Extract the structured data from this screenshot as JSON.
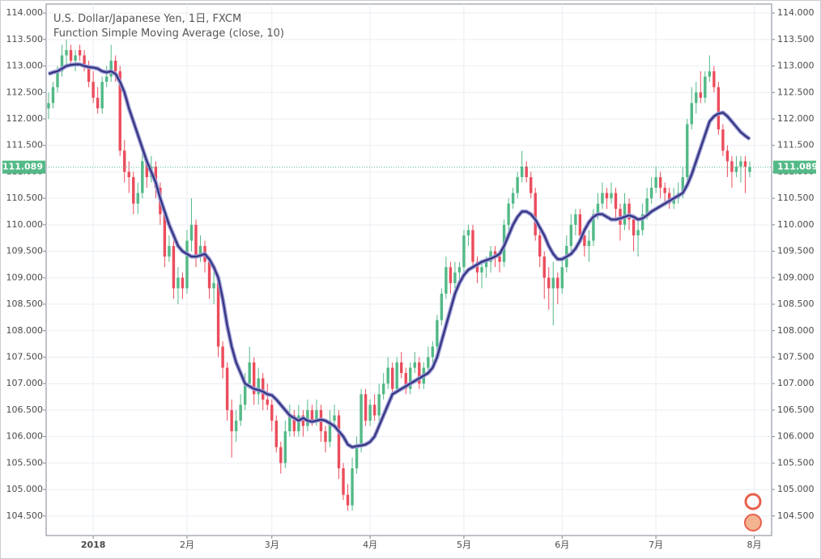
{
  "chart_data": {
    "type": "candlestick",
    "title": "U.S. Dollar/Japanese Yen, 1日, FXCM",
    "up_color": "#53b987",
    "down_color": "#eb4d5c",
    "grid": true,
    "ylim": [
      104.13,
      114.17
    ],
    "yticks": [
      {
        "value": 104.5,
        "label": "104.500"
      },
      {
        "value": 105,
        "label": "105.000"
      },
      {
        "value": 105.5,
        "label": "105.500"
      },
      {
        "value": 106,
        "label": "106.000"
      },
      {
        "value": 106.5,
        "label": "106.500"
      },
      {
        "value": 107,
        "label": "107.000"
      },
      {
        "value": 107.5,
        "label": "107.500"
      },
      {
        "value": 108,
        "label": "108.000"
      },
      {
        "value": 108.5,
        "label": "108.500"
      },
      {
        "value": 109,
        "label": "109.000"
      },
      {
        "value": 109.5,
        "label": "109.500"
      },
      {
        "value": 110,
        "label": "110.000"
      },
      {
        "value": 110.5,
        "label": "110.500"
      },
      {
        "value": 111,
        "label": "111.000"
      },
      {
        "value": 111.5,
        "label": "111.500"
      },
      {
        "value": 112,
        "label": "112.000"
      },
      {
        "value": 112.5,
        "label": "112.500"
      },
      {
        "value": 113,
        "label": "113.000"
      },
      {
        "value": 113.5,
        "label": "113.500"
      },
      {
        "value": 114,
        "label": "114.000"
      }
    ],
    "xlim": [
      -0.54,
      161.9
    ],
    "xticks": [
      {
        "value": 10,
        "label": "2018"
      },
      {
        "value": 31,
        "label": "2月"
      },
      {
        "value": 50,
        "label": "3月"
      },
      {
        "value": 72,
        "label": "4月"
      },
      {
        "value": 93,
        "label": "5月"
      },
      {
        "value": 115,
        "label": "6月"
      },
      {
        "value": 136,
        "label": "7月"
      },
      {
        "value": 158,
        "label": "8月"
      }
    ],
    "last_price": 111.089,
    "last_price_color": "#53b987",
    "candles": [
      [
        112.2,
        112.5,
        112.0,
        112.3
      ],
      [
        112.3,
        112.7,
        112.2,
        112.6
      ],
      [
        112.6,
        113.0,
        112.5,
        112.9
      ],
      [
        112.9,
        113.4,
        112.8,
        113.2
      ],
      [
        113.2,
        113.5,
        113.0,
        113.3
      ],
      [
        113.3,
        113.4,
        113.0,
        113.1
      ],
      [
        113.1,
        113.3,
        112.9,
        113.2
      ],
      [
        113.3,
        113.4,
        113.1,
        113.2
      ],
      [
        113.2,
        113.3,
        112.9,
        113.0
      ],
      [
        113.0,
        113.1,
        112.6,
        112.7
      ],
      [
        112.7,
        112.9,
        112.3,
        112.4
      ],
      [
        112.4,
        112.6,
        112.1,
        112.2
      ],
      [
        112.2,
        112.8,
        112.1,
        112.7
      ],
      [
        112.7,
        113.0,
        112.6,
        112.8
      ],
      [
        112.8,
        113.4,
        112.7,
        113.1
      ],
      [
        113.1,
        113.2,
        112.7,
        112.9
      ],
      [
        112.9,
        113.0,
        111.3,
        111.4
      ],
      [
        111.4,
        111.6,
        110.8,
        111.0
      ],
      [
        111.0,
        111.2,
        110.6,
        110.9
      ],
      [
        110.9,
        111.0,
        110.2,
        110.4
      ],
      [
        110.4,
        110.8,
        110.2,
        110.6
      ],
      [
        110.6,
        111.4,
        110.5,
        111.2
      ],
      [
        111.2,
        111.3,
        110.7,
        110.9
      ],
      [
        110.9,
        111.3,
        110.8,
        111.1
      ],
      [
        111.1,
        111.2,
        110.5,
        110.7
      ],
      [
        110.7,
        110.8,
        110.0,
        110.2
      ],
      [
        110.2,
        110.3,
        109.2,
        109.4
      ],
      [
        109.4,
        109.8,
        109.3,
        109.6
      ],
      [
        109.6,
        109.7,
        108.6,
        108.8
      ],
      [
        108.8,
        109.2,
        108.5,
        109.0
      ],
      [
        109.0,
        109.1,
        108.6,
        108.8
      ],
      [
        108.8,
        109.9,
        108.7,
        109.7
      ],
      [
        109.7,
        110.5,
        109.5,
        110.0
      ],
      [
        110.0,
        110.1,
        109.2,
        109.4
      ],
      [
        109.4,
        109.8,
        109.3,
        109.6
      ],
      [
        109.6,
        109.7,
        109.1,
        109.3
      ],
      [
        109.3,
        109.4,
        108.6,
        108.8
      ],
      [
        108.8,
        109.1,
        108.5,
        108.9
      ],
      [
        108.9,
        109.0,
        107.5,
        107.7
      ],
      [
        107.7,
        107.8,
        107.1,
        107.3
      ],
      [
        107.3,
        107.4,
        106.3,
        106.5
      ],
      [
        106.5,
        106.7,
        105.6,
        106.1
      ],
      [
        106.1,
        106.5,
        105.9,
        106.3
      ],
      [
        106.3,
        106.8,
        106.2,
        106.6
      ],
      [
        106.6,
        107.2,
        106.5,
        107.0
      ],
      [
        107.0,
        107.7,
        106.9,
        107.4
      ],
      [
        107.4,
        107.5,
        106.6,
        106.8
      ],
      [
        106.8,
        107.3,
        106.6,
        107.1
      ],
      [
        107.1,
        107.2,
        106.5,
        106.7
      ],
      [
        106.7,
        107.0,
        106.5,
        106.6
      ],
      [
        106.6,
        106.7,
        106.1,
        106.3
      ],
      [
        106.3,
        106.4,
        105.7,
        105.8
      ],
      [
        105.8,
        105.9,
        105.3,
        105.5
      ],
      [
        105.5,
        106.3,
        105.4,
        106.1
      ],
      [
        106.1,
        106.6,
        106.0,
        106.4
      ],
      [
        106.4,
        106.5,
        106.0,
        106.1
      ],
      [
        106.1,
        106.6,
        106.0,
        106.4
      ],
      [
        106.4,
        106.5,
        106.0,
        106.2
      ],
      [
        106.2,
        106.7,
        106.1,
        106.5
      ],
      [
        106.5,
        106.6,
        106.2,
        106.3
      ],
      [
        106.3,
        106.7,
        106.2,
        106.5
      ],
      [
        106.5,
        106.6,
        105.9,
        106.1
      ],
      [
        106.1,
        106.2,
        105.7,
        105.9
      ],
      [
        105.9,
        106.5,
        105.8,
        106.3
      ],
      [
        106.3,
        106.6,
        106.2,
        106.4
      ],
      [
        106.4,
        106.5,
        105.2,
        105.4
      ],
      [
        105.4,
        105.5,
        104.8,
        104.9
      ],
      [
        104.9,
        105.1,
        104.6,
        104.7
      ],
      [
        104.7,
        105.6,
        104.6,
        105.4
      ],
      [
        105.4,
        106.0,
        105.3,
        105.8
      ],
      [
        105.8,
        106.9,
        105.7,
        106.8
      ],
      [
        106.8,
        106.9,
        106.2,
        106.3
      ],
      [
        106.3,
        106.7,
        106.2,
        106.6
      ],
      [
        106.6,
        106.8,
        106.3,
        106.4
      ],
      [
        106.4,
        107.0,
        106.3,
        106.8
      ],
      [
        106.8,
        107.2,
        106.7,
        107.0
      ],
      [
        107.0,
        107.5,
        106.9,
        107.3
      ],
      [
        107.3,
        107.4,
        106.7,
        106.9
      ],
      [
        106.9,
        107.5,
        106.8,
        107.4
      ],
      [
        107.4,
        107.6,
        107.1,
        107.2
      ],
      [
        107.2,
        107.3,
        106.8,
        106.9
      ],
      [
        106.9,
        107.4,
        106.8,
        107.3
      ],
      [
        107.3,
        107.6,
        107.2,
        107.4
      ],
      [
        107.4,
        107.5,
        106.9,
        107.0
      ],
      [
        107.0,
        107.4,
        106.9,
        107.3
      ],
      [
        107.3,
        107.7,
        107.2,
        107.5
      ],
      [
        107.5,
        107.8,
        107.4,
        107.7
      ],
      [
        107.7,
        108.3,
        107.6,
        108.2
      ],
      [
        108.2,
        108.8,
        108.1,
        108.7
      ],
      [
        108.7,
        109.4,
        108.6,
        109.2
      ],
      [
        109.2,
        109.3,
        108.7,
        108.9
      ],
      [
        108.9,
        109.3,
        108.8,
        109.1
      ],
      [
        109.1,
        109.3,
        108.9,
        109.2
      ],
      [
        109.2,
        109.9,
        109.1,
        109.8
      ],
      [
        109.8,
        110.0,
        109.6,
        109.9
      ],
      [
        109.9,
        110.0,
        109.2,
        109.3
      ],
      [
        109.3,
        109.4,
        108.9,
        109.1
      ],
      [
        109.1,
        109.3,
        108.8,
        109.2
      ],
      [
        109.2,
        109.4,
        109.0,
        109.3
      ],
      [
        109.3,
        109.6,
        109.1,
        109.5
      ],
      [
        109.5,
        109.6,
        109.2,
        109.4
      ],
      [
        109.4,
        109.5,
        109.1,
        109.3
      ],
      [
        109.3,
        110.1,
        109.2,
        110.0
      ],
      [
        110.0,
        110.5,
        109.9,
        110.4
      ],
      [
        110.4,
        110.7,
        110.3,
        110.6
      ],
      [
        110.6,
        111.0,
        110.5,
        110.9
      ],
      [
        110.9,
        111.4,
        110.8,
        111.1
      ],
      [
        111.1,
        111.2,
        110.8,
        110.9
      ],
      [
        110.9,
        111.0,
        110.5,
        110.6
      ],
      [
        110.6,
        110.7,
        109.7,
        109.8
      ],
      [
        109.8,
        109.9,
        109.2,
        109.4
      ],
      [
        109.4,
        109.5,
        108.6,
        109.0
      ],
      [
        109.0,
        109.2,
        108.4,
        108.8
      ],
      [
        108.8,
        109.3,
        108.1,
        109.0
      ],
      [
        109.0,
        109.1,
        108.5,
        108.8
      ],
      [
        108.8,
        109.4,
        108.7,
        109.2
      ],
      [
        109.2,
        109.8,
        109.1,
        109.6
      ],
      [
        109.6,
        110.2,
        109.5,
        110.0
      ],
      [
        110.0,
        110.3,
        109.8,
        110.2
      ],
      [
        110.2,
        110.3,
        109.7,
        109.8
      ],
      [
        109.8,
        109.9,
        109.4,
        109.6
      ],
      [
        109.6,
        109.9,
        109.3,
        109.7
      ],
      [
        109.7,
        110.3,
        109.6,
        110.2
      ],
      [
        110.2,
        110.6,
        110.1,
        110.4
      ],
      [
        110.4,
        110.8,
        110.3,
        110.6
      ],
      [
        110.6,
        110.7,
        110.3,
        110.5
      ],
      [
        110.5,
        110.8,
        110.4,
        110.6
      ],
      [
        110.6,
        110.7,
        110.1,
        110.3
      ],
      [
        110.3,
        110.4,
        109.7,
        110.0
      ],
      [
        110.0,
        110.6,
        109.9,
        110.4
      ],
      [
        110.4,
        110.5,
        109.9,
        110.1
      ],
      [
        110.1,
        110.2,
        109.5,
        109.8
      ],
      [
        109.8,
        110.1,
        109.4,
        109.9
      ],
      [
        109.9,
        110.4,
        109.8,
        110.2
      ],
      [
        110.2,
        110.7,
        110.1,
        110.5
      ],
      [
        110.5,
        110.9,
        110.4,
        110.7
      ],
      [
        110.7,
        111.1,
        110.6,
        110.9
      ],
      [
        110.9,
        111.0,
        110.5,
        110.7
      ],
      [
        110.7,
        110.8,
        110.4,
        110.6
      ],
      [
        110.6,
        110.7,
        110.3,
        110.4
      ],
      [
        110.4,
        110.7,
        110.3,
        110.5
      ],
      [
        110.5,
        110.8,
        110.4,
        110.6
      ],
      [
        110.6,
        111.1,
        110.5,
        110.9
      ],
      [
        110.9,
        112.0,
        110.8,
        111.9
      ],
      [
        111.9,
        112.6,
        111.8,
        112.3
      ],
      [
        112.3,
        112.7,
        112.1,
        112.5
      ],
      [
        112.5,
        112.9,
        112.3,
        112.4
      ],
      [
        112.4,
        112.9,
        112.3,
        112.8
      ],
      [
        112.8,
        113.2,
        112.7,
        112.9
      ],
      [
        112.9,
        113.0,
        112.5,
        112.6
      ],
      [
        112.6,
        112.7,
        111.7,
        111.8
      ],
      [
        111.8,
        111.9,
        111.3,
        111.4
      ],
      [
        111.4,
        111.5,
        110.9,
        111.2
      ],
      [
        111.2,
        111.3,
        110.7,
        111.0
      ],
      [
        111.0,
        111.3,
        110.9,
        111.1
      ],
      [
        111.1,
        111.3,
        110.8,
        111.2
      ],
      [
        111.2,
        111.3,
        110.6,
        111.1
      ],
      [
        111.0,
        111.2,
        110.9,
        111.089
      ]
    ],
    "series": [
      {
        "name": "Function Simple Moving Average (close, 10)",
        "color": "#34347f",
        "values": [
          112.85,
          112.88,
          112.9,
          112.95,
          113.0,
          113.02,
          113.03,
          113.03,
          113.0,
          112.98,
          112.97,
          112.95,
          112.9,
          112.88,
          112.9,
          112.85,
          112.7,
          112.5,
          112.2,
          111.95,
          111.7,
          111.45,
          111.2,
          111.0,
          110.8,
          110.5,
          110.25,
          110.0,
          109.8,
          109.6,
          109.5,
          109.45,
          109.4,
          109.4,
          109.42,
          109.45,
          109.35,
          109.2,
          109.0,
          108.6,
          108.1,
          107.7,
          107.4,
          107.2,
          107.0,
          106.95,
          106.9,
          106.88,
          106.85,
          106.8,
          106.78,
          106.7,
          106.6,
          106.5,
          106.4,
          106.35,
          106.3,
          106.35,
          106.3,
          106.28,
          106.3,
          106.32,
          106.3,
          106.25,
          106.2,
          106.1,
          106.0,
          105.85,
          105.8,
          105.82,
          105.83,
          105.85,
          105.9,
          106.0,
          106.2,
          106.4,
          106.6,
          106.8,
          106.85,
          106.9,
          106.95,
          107.0,
          107.05,
          107.1,
          107.15,
          107.2,
          107.3,
          107.5,
          107.8,
          108.1,
          108.4,
          108.7,
          108.9,
          109.05,
          109.15,
          109.2,
          109.25,
          109.3,
          109.33,
          109.36,
          109.4,
          109.45,
          109.6,
          109.8,
          110.0,
          110.15,
          110.25,
          110.25,
          110.2,
          110.1,
          109.95,
          109.8,
          109.6,
          109.45,
          109.35,
          109.35,
          109.4,
          109.45,
          109.55,
          109.7,
          109.9,
          110.05,
          110.15,
          110.2,
          110.2,
          110.15,
          110.1,
          110.1,
          110.12,
          110.15,
          110.18,
          110.15,
          110.1,
          110.12,
          110.18,
          110.25,
          110.3,
          110.35,
          110.4,
          110.45,
          110.5,
          110.55,
          110.6,
          110.75,
          110.95,
          111.2,
          111.45,
          111.7,
          111.95,
          112.05,
          112.1,
          112.12,
          112.05,
          111.95,
          111.85,
          111.75,
          111.68,
          111.62
        ]
      }
    ]
  }
}
